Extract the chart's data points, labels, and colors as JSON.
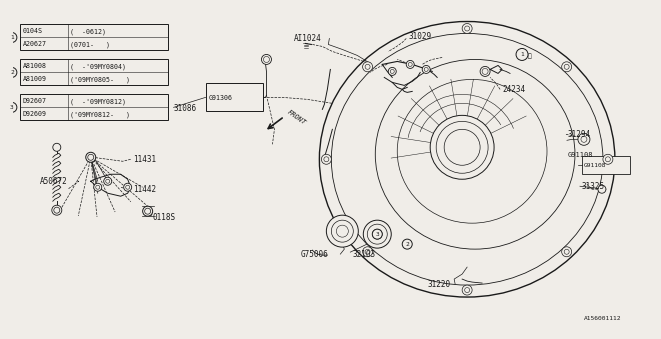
{
  "bg_color": "#f0ede8",
  "line_color": "#1a1a1a",
  "font_size_small": 5.5,
  "font_size_tiny": 5,
  "footer": "A156001112",
  "legend_boxes": [
    {
      "circle": "1",
      "rows": [
        [
          "0104S",
          "(  -0612)"
        ],
        [
          "A20627",
          "(0701-   )"
        ]
      ]
    },
    {
      "circle": "2",
      "rows": [
        [
          "A81008",
          "(  -'09MY0804)"
        ],
        [
          "A81009",
          "('09MY0805-   )"
        ]
      ]
    },
    {
      "circle": "3",
      "rows": [
        [
          "D92607",
          "(  -'09MY0812)"
        ],
        [
          "D92609",
          "('09MY0812-   )"
        ]
      ]
    }
  ]
}
